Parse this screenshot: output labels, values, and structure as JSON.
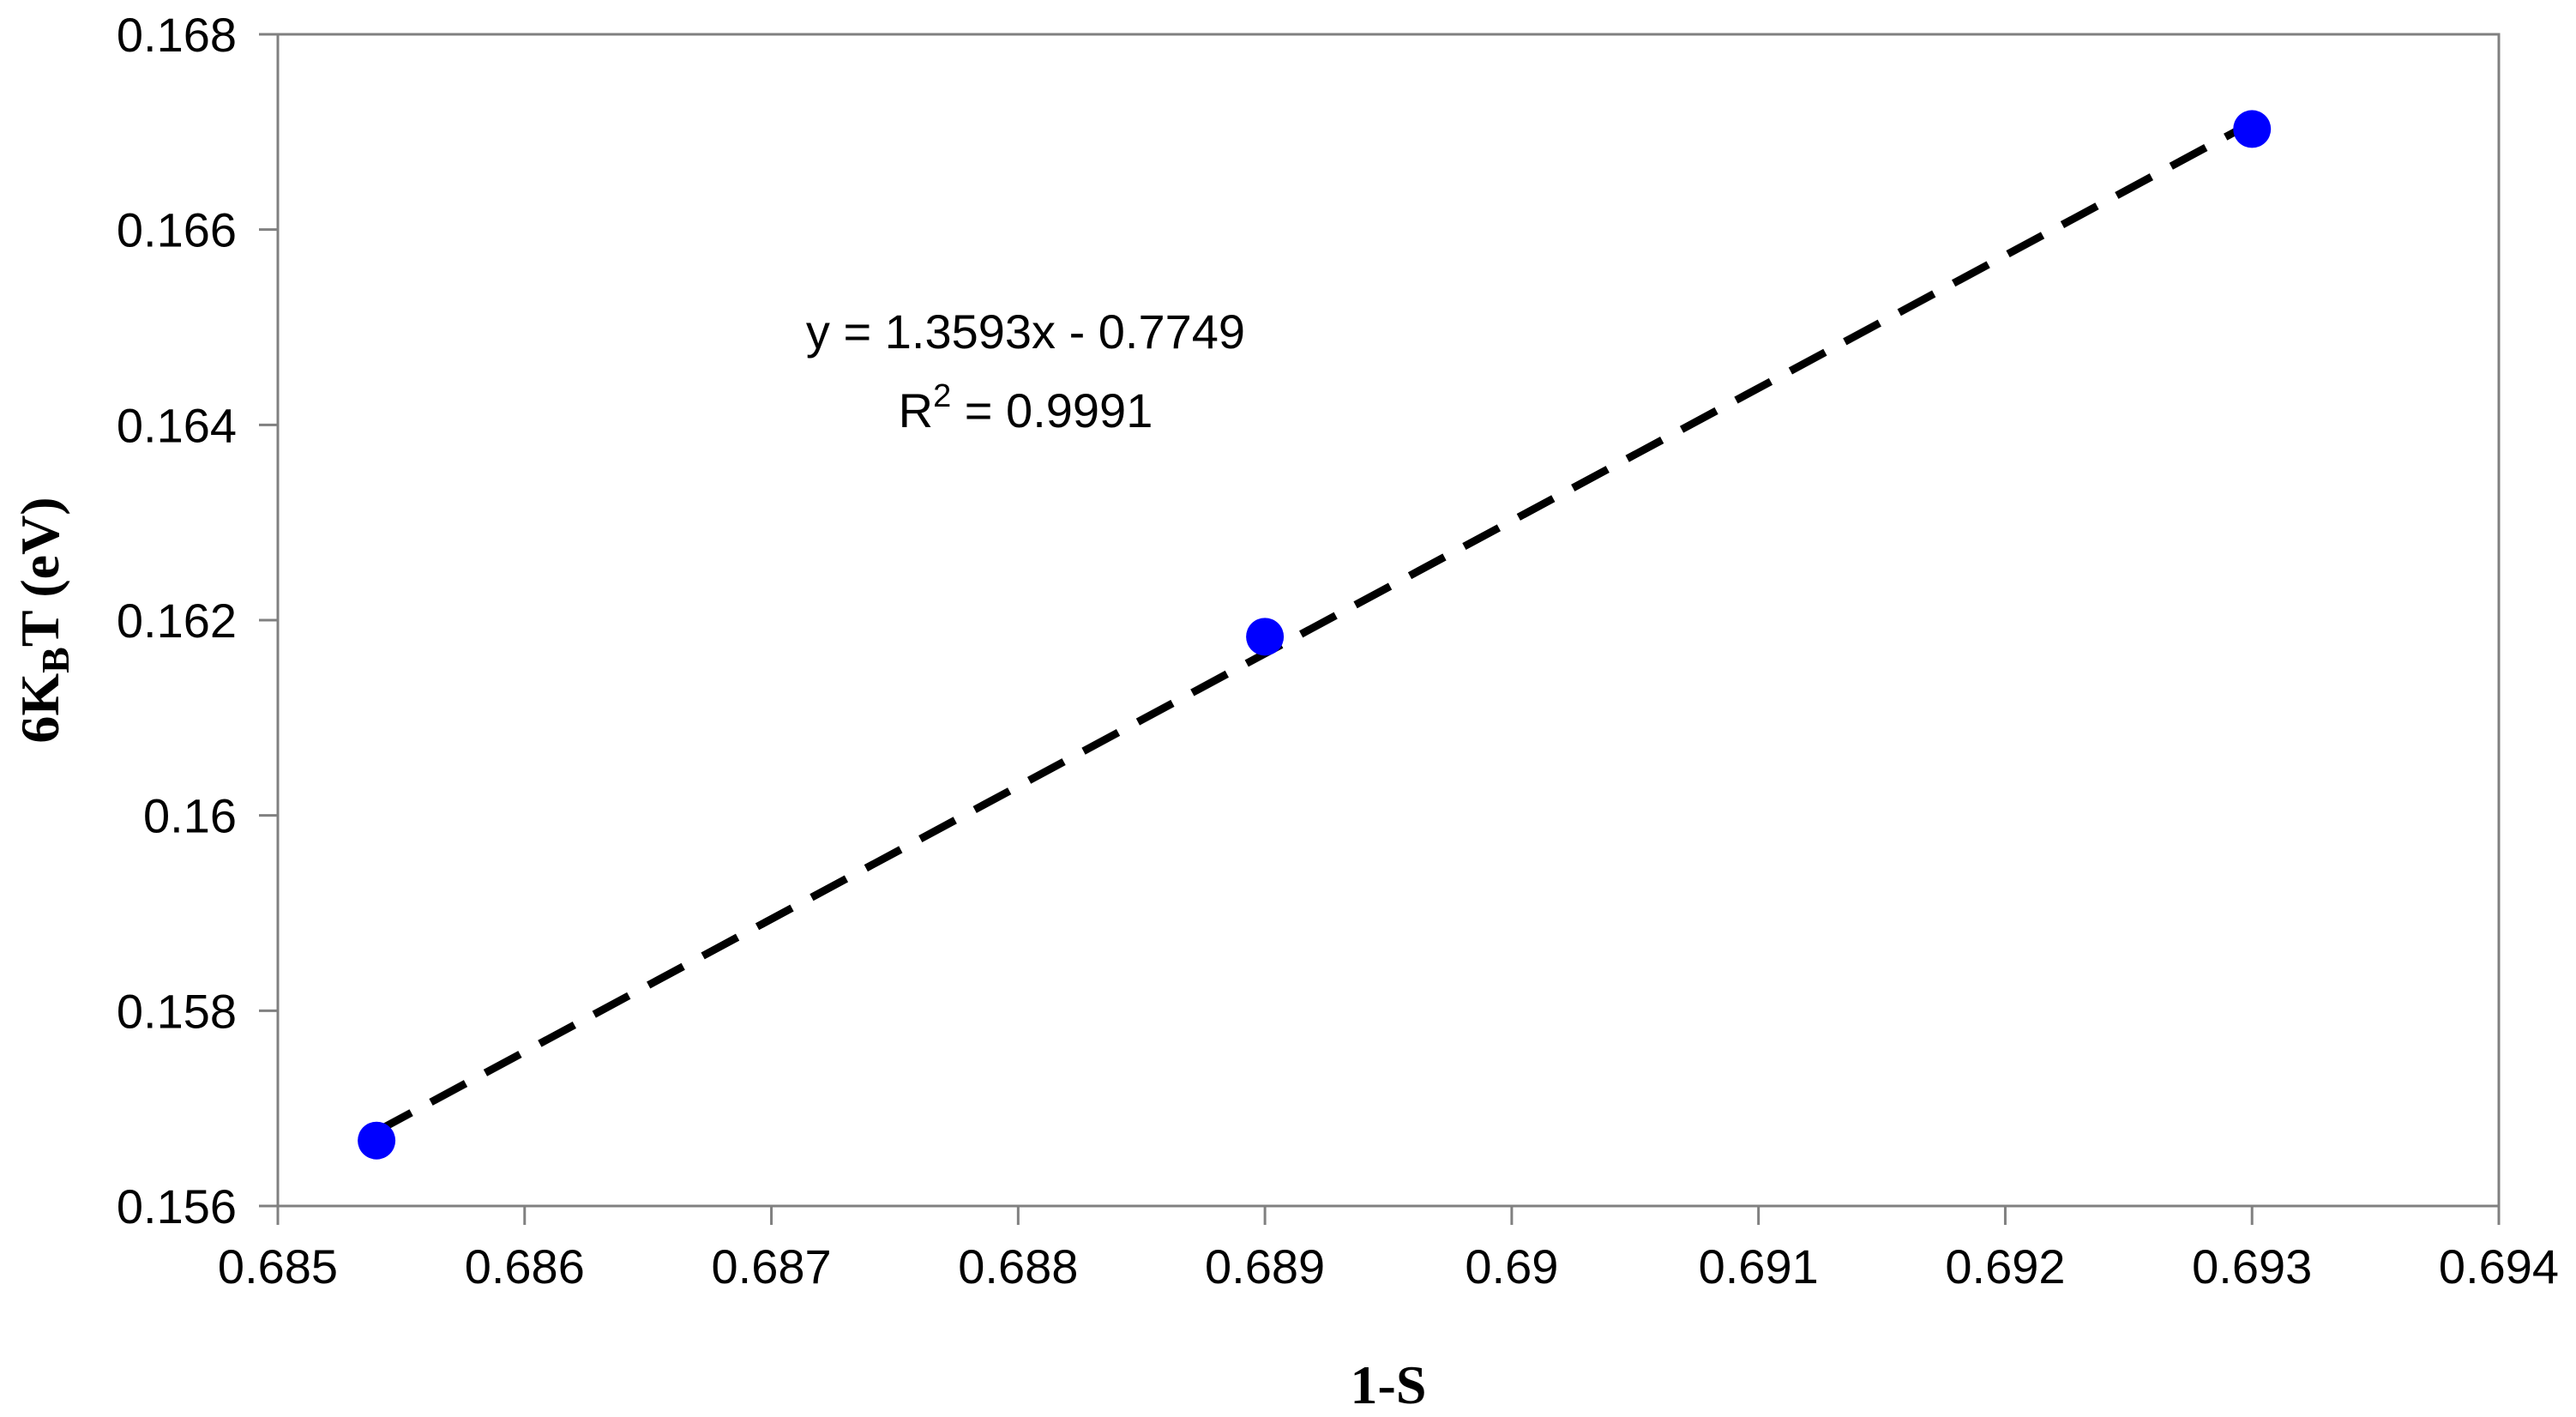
{
  "chart_data": {
    "type": "scatter",
    "xlabel": "1-S",
    "ylabel": {
      "prefix": "6K",
      "subscript": "B",
      "suffix": "T (eV)"
    },
    "xlim": [
      0.685,
      0.694
    ],
    "ylim": [
      0.156,
      0.168
    ],
    "x_ticks": [
      "0.685",
      "0.686",
      "0.687",
      "0.688",
      "0.689",
      "0.69",
      "0.691",
      "0.692",
      "0.693",
      "0.694"
    ],
    "y_ticks": [
      "0.156",
      "0.158",
      "0.16",
      "0.162",
      "0.164",
      "0.166",
      "0.168"
    ],
    "grid": false,
    "series": [
      {
        "points": [
          {
            "x": 0.6854,
            "y": 0.15667
          },
          {
            "x": 0.689,
            "y": 0.16183
          },
          {
            "x": 0.693,
            "y": 0.16703
          }
        ],
        "marker": "circle",
        "color": "#0000ff"
      }
    ],
    "trendline": {
      "style": "dashed",
      "color": "#000000",
      "slope": 1.3593,
      "intercept": -0.7749,
      "x_range": [
        0.6854,
        0.693
      ],
      "equation": "y = 1.3593x - 0.7749",
      "r2_prefix": "R",
      "r2_sup": "2",
      "r2_suffix": " = 0.9991"
    }
  }
}
